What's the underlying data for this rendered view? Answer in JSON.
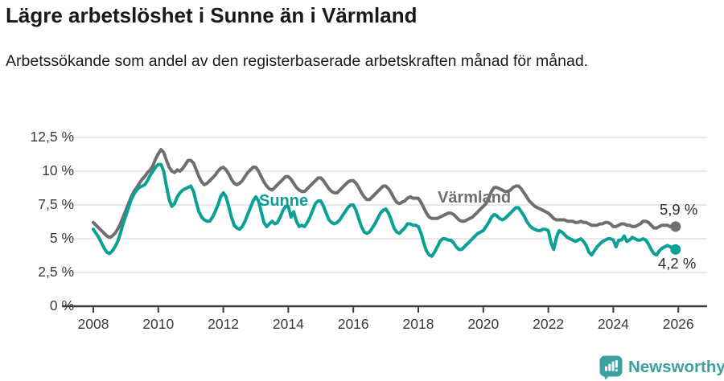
{
  "header": {
    "title": "Lägre arbetslöshet i Sunne än i Värmland",
    "subtitle": "Arbetssökande som andel av den registerbaserade arbetskraften månad för månad."
  },
  "chart_data": {
    "type": "line",
    "title": "Lägre arbetslöshet i Sunne än i Värmland",
    "frequency": "monthly",
    "start_year": 2008,
    "grid": true,
    "legend": "inline-labels",
    "ylim": [
      0,
      12.5
    ],
    "x_range_years": [
      2008,
      2026
    ],
    "y_ticks": [
      {
        "value": 0,
        "label": "0 %"
      },
      {
        "value": 2.5,
        "label": "2,5 %"
      },
      {
        "value": 5,
        "label": "5 %"
      },
      {
        "value": 7.5,
        "label": "7,5 %"
      },
      {
        "value": 10,
        "label": "10 %"
      },
      {
        "value": 12.5,
        "label": "12,5 %"
      }
    ],
    "x_ticks": [
      {
        "year": 2008,
        "label": "2008"
      },
      {
        "year": 2010,
        "label": "2010"
      },
      {
        "year": 2012,
        "label": "2012"
      },
      {
        "year": 2014,
        "label": "2014"
      },
      {
        "year": 2016,
        "label": "2016"
      },
      {
        "year": 2018,
        "label": "2018"
      },
      {
        "year": 2020,
        "label": "2020"
      },
      {
        "year": 2022,
        "label": "2022"
      },
      {
        "year": 2024,
        "label": "2024"
      },
      {
        "year": 2026,
        "label": "2026"
      }
    ],
    "series": [
      {
        "id": "sunne",
        "name": "Sunne",
        "color": "#0aa096",
        "end_label": "4,2 %",
        "end_value": 4.2,
        "values": [
          5.7,
          5.4,
          5.1,
          4.7,
          4.3,
          4.0,
          3.9,
          4.1,
          4.4,
          4.8,
          5.4,
          6.1,
          6.7,
          7.3,
          7.9,
          8.3,
          8.6,
          8.8,
          8.9,
          9.0,
          9.3,
          9.7,
          10.0,
          10.3,
          10.5,
          10.5,
          10.0,
          8.9,
          7.9,
          7.4,
          7.6,
          8.1,
          8.4,
          8.6,
          8.7,
          8.8,
          8.9,
          8.5,
          7.7,
          7.0,
          6.6,
          6.4,
          6.3,
          6.3,
          6.6,
          7.0,
          7.5,
          8.1,
          8.4,
          8.1,
          7.4,
          6.6,
          6.0,
          5.8,
          5.7,
          5.9,
          6.3,
          6.8,
          7.3,
          7.8,
          8.1,
          7.8,
          7.0,
          6.2,
          5.9,
          6.1,
          6.3,
          6.1,
          6.2,
          6.6,
          7.1,
          7.4,
          7.4,
          6.6,
          7.0,
          6.3,
          5.9,
          6.0,
          5.9,
          6.2,
          6.6,
          7.1,
          7.6,
          7.8,
          7.8,
          7.4,
          6.9,
          6.4,
          6.2,
          6.1,
          6.2,
          6.4,
          6.7,
          7.0,
          7.3,
          7.5,
          7.5,
          7.1,
          6.5,
          5.9,
          5.5,
          5.4,
          5.5,
          5.8,
          6.1,
          6.5,
          6.9,
          7.1,
          7.2,
          6.9,
          6.4,
          5.8,
          5.5,
          5.4,
          5.6,
          5.8,
          6.1,
          6.1,
          6.0,
          6.0,
          5.9,
          5.4,
          4.7,
          4.1,
          3.8,
          3.7,
          4.0,
          4.4,
          4.8,
          5.0,
          5.0,
          4.9,
          4.9,
          4.7,
          4.4,
          4.2,
          4.2,
          4.4,
          4.6,
          4.8,
          5.0,
          5.2,
          5.4,
          5.5,
          5.6,
          5.9,
          6.2,
          6.6,
          6.8,
          6.7,
          6.5,
          6.4,
          6.5,
          6.7,
          6.9,
          7.1,
          7.3,
          7.3,
          7.0,
          6.7,
          6.3,
          6.0,
          5.8,
          5.7,
          5.6,
          5.6,
          5.7,
          5.7,
          5.6,
          4.7,
          4.2,
          5.1,
          5.6,
          5.5,
          5.3,
          5.1,
          5.0,
          4.9,
          4.8,
          4.9,
          5.0,
          4.8,
          4.5,
          4.0,
          3.8,
          4.1,
          4.4,
          4.6,
          4.8,
          4.9,
          5.0,
          5.0,
          4.9,
          4.4,
          4.9,
          4.9,
          5.2,
          4.8,
          4.9,
          5.1,
          5.0,
          4.9,
          4.9,
          5.0,
          4.9,
          4.6,
          4.2,
          3.9,
          3.8,
          4.1,
          4.3,
          4.4,
          4.5,
          4.4,
          4.3,
          4.2
        ]
      },
      {
        "id": "varmland",
        "name": "Värmland",
        "color": "#6e6e73",
        "end_label": "5,9 %",
        "end_value": 5.9,
        "values": [
          6.2,
          6.0,
          5.8,
          5.6,
          5.4,
          5.2,
          5.1,
          5.2,
          5.4,
          5.7,
          6.1,
          6.6,
          7.1,
          7.6,
          8.1,
          8.5,
          8.8,
          9.1,
          9.4,
          9.6,
          9.9,
          10.1,
          10.4,
          10.9,
          11.3,
          11.6,
          11.4,
          10.8,
          10.3,
          10.0,
          9.9,
          10.1,
          10.0,
          10.2,
          10.5,
          10.8,
          10.8,
          10.6,
          10.1,
          9.6,
          9.2,
          9.0,
          9.1,
          9.3,
          9.5,
          9.7,
          10.0,
          10.2,
          10.3,
          10.1,
          9.8,
          9.4,
          9.1,
          9.0,
          9.1,
          9.3,
          9.6,
          9.9,
          10.1,
          10.3,
          10.3,
          10.0,
          9.6,
          9.2,
          8.9,
          8.7,
          8.6,
          8.8,
          9.0,
          9.2,
          9.4,
          9.6,
          9.6,
          9.4,
          9.1,
          8.8,
          8.6,
          8.5,
          8.5,
          8.7,
          8.9,
          9.1,
          9.3,
          9.5,
          9.5,
          9.3,
          9.0,
          8.7,
          8.5,
          8.4,
          8.4,
          8.6,
          8.8,
          9.0,
          9.2,
          9.3,
          9.3,
          9.1,
          8.8,
          8.4,
          8.1,
          7.9,
          7.9,
          8.1,
          8.3,
          8.5,
          8.7,
          8.9,
          8.9,
          8.7,
          8.4,
          8.0,
          7.7,
          7.6,
          7.7,
          7.8,
          8.0,
          8.1,
          8.0,
          8.0,
          8.0,
          7.7,
          7.3,
          6.9,
          6.6,
          6.5,
          6.5,
          6.5,
          6.6,
          6.7,
          6.8,
          6.9,
          6.9,
          6.8,
          6.6,
          6.4,
          6.3,
          6.3,
          6.4,
          6.5,
          6.6,
          6.8,
          7.0,
          7.2,
          7.4,
          7.6,
          8.0,
          8.5,
          8.8,
          8.8,
          8.7,
          8.6,
          8.5,
          8.5,
          8.6,
          8.8,
          8.9,
          8.9,
          8.7,
          8.4,
          8.1,
          7.8,
          7.6,
          7.4,
          7.3,
          7.2,
          7.1,
          7.0,
          6.9,
          6.7,
          6.5,
          6.4,
          6.4,
          6.4,
          6.4,
          6.3,
          6.3,
          6.3,
          6.2,
          6.2,
          6.3,
          6.2,
          6.2,
          6.1,
          6.0,
          6.0,
          6.0,
          6.1,
          6.1,
          6.2,
          6.2,
          6.1,
          5.9,
          5.9,
          6.0,
          6.1,
          6.1,
          6.0,
          6.0,
          5.9,
          5.9,
          6.0,
          6.1,
          6.3,
          6.3,
          6.2,
          6.0,
          5.8,
          5.8,
          5.9,
          6.0,
          6.0,
          6.0,
          5.9,
          5.9,
          5.9
        ]
      }
    ]
  },
  "footer": {
    "brand": "Newsworthy",
    "brand_color": "#3fa0a0"
  }
}
